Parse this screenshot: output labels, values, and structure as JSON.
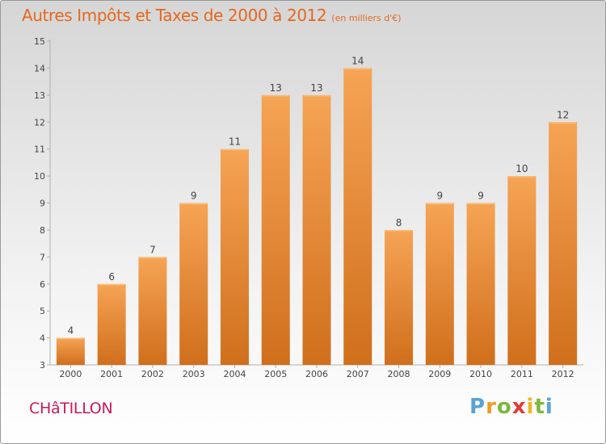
{
  "header": {
    "title": "Autres Impôts et Taxes de 2000 à 2012",
    "unit": "(en milliers d'€)"
  },
  "footer": {
    "city": "CHâTILLON",
    "brand": "Proxiti"
  },
  "colors": {
    "title": "#e4681e",
    "bar_top": "#f6a455",
    "bar_bottom": "#d06f1c",
    "city": "#c41a5c"
  },
  "chart_data": {
    "type": "bar",
    "categories": [
      "2000",
      "2001",
      "2002",
      "2003",
      "2004",
      "2005",
      "2006",
      "2007",
      "2008",
      "2009",
      "2010",
      "2011",
      "2012"
    ],
    "values": [
      4,
      6,
      7,
      9,
      11,
      13,
      13,
      14,
      8,
      9,
      9,
      10,
      12
    ],
    "title": "Autres Impôts et Taxes de 2000 à 2012",
    "subtitle": "(en milliers d'€)",
    "xlabel": "",
    "ylabel": "",
    "ylim": [
      3,
      15
    ],
    "yticks": [
      3,
      4,
      5,
      6,
      7,
      8,
      9,
      10,
      11,
      12,
      13,
      14,
      15
    ],
    "grid": false,
    "data_labels": true
  }
}
